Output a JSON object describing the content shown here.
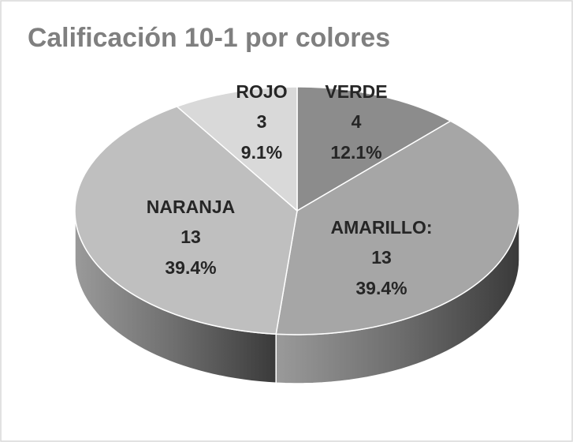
{
  "chart_data": {
    "type": "pie3d",
    "title": "Calificación 10-1 por colores",
    "categories": [
      "VERDE",
      "AMARILLO:",
      "NARANJA",
      "ROJO"
    ],
    "values": [
      4,
      13,
      13,
      3
    ],
    "percent_labels": [
      "12.1%",
      "39.4%",
      "39.4%",
      "9.1%"
    ],
    "colors": [
      "#8c8c8c",
      "#a6a6a6",
      "#bfbfbf",
      "#d9d9d9"
    ]
  }
}
